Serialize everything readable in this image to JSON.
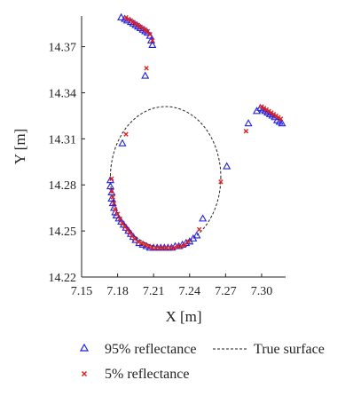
{
  "chart_data": {
    "type": "scatter",
    "xlabel": "X [m]",
    "ylabel": "Y [m]",
    "xlim": [
      7.15,
      7.32
    ],
    "ylim": [
      14.22,
      14.39
    ],
    "xticks": [
      "7.15",
      "7.18",
      "7.21",
      "7.24",
      "7.27",
      "7.30"
    ],
    "yticks": [
      "14.22",
      "14.25",
      "14.28",
      "14.31",
      "14.34",
      "14.37"
    ],
    "grid": false,
    "legend_position": "bottom",
    "colors": {
      "blue": "#2020e0",
      "red": "#e02020",
      "line": "#222222"
    },
    "series": [
      {
        "name": "95% reflectance",
        "marker": "triangle",
        "points": [
          [
            7.183,
            14.389
          ],
          [
            7.186,
            14.388
          ],
          [
            7.188,
            14.387
          ],
          [
            7.191,
            14.386
          ],
          [
            7.193,
            14.385
          ],
          [
            7.195,
            14.384
          ],
          [
            7.197,
            14.383
          ],
          [
            7.199,
            14.382
          ],
          [
            7.201,
            14.381
          ],
          [
            7.203,
            14.38
          ],
          [
            7.205,
            14.379
          ],
          [
            7.207,
            14.377
          ],
          [
            7.208,
            14.374
          ],
          [
            7.209,
            14.371
          ],
          [
            7.203,
            14.351
          ],
          [
            7.184,
            14.307
          ],
          [
            7.174,
            14.283
          ],
          [
            7.174,
            14.279
          ],
          [
            7.175,
            14.275
          ],
          [
            7.175,
            14.271
          ],
          [
            7.176,
            14.268
          ],
          [
            7.177,
            14.265
          ],
          [
            7.178,
            14.262
          ],
          [
            7.179,
            14.26
          ],
          [
            7.181,
            14.258
          ],
          [
            7.183,
            14.256
          ],
          [
            7.185,
            14.254
          ],
          [
            7.187,
            14.252
          ],
          [
            7.189,
            14.25
          ],
          [
            7.191,
            14.248
          ],
          [
            7.193,
            14.246
          ],
          [
            7.195,
            14.244
          ],
          [
            7.198,
            14.242
          ],
          [
            7.201,
            14.241
          ],
          [
            7.204,
            14.24
          ],
          [
            7.207,
            14.239
          ],
          [
            7.21,
            14.239
          ],
          [
            7.213,
            14.239
          ],
          [
            7.216,
            14.239
          ],
          [
            7.219,
            14.239
          ],
          [
            7.222,
            14.239
          ],
          [
            7.225,
            14.239
          ],
          [
            7.228,
            14.24
          ],
          [
            7.231,
            14.24
          ],
          [
            7.234,
            14.241
          ],
          [
            7.237,
            14.242
          ],
          [
            7.24,
            14.243
          ],
          [
            7.243,
            14.245
          ],
          [
            7.246,
            14.247
          ],
          [
            7.251,
            14.258
          ],
          [
            7.271,
            14.292
          ],
          [
            7.289,
            14.32
          ],
          [
            7.296,
            14.328
          ],
          [
            7.299,
            14.33
          ],
          [
            7.301,
            14.329
          ],
          [
            7.303,
            14.328
          ],
          [
            7.305,
            14.327
          ],
          [
            7.307,
            14.326
          ],
          [
            7.309,
            14.325
          ],
          [
            7.311,
            14.324
          ],
          [
            7.313,
            14.322
          ],
          [
            7.315,
            14.321
          ],
          [
            7.317,
            14.32
          ]
        ]
      },
      {
        "name": "5% reflectance",
        "marker": "cross",
        "points": [
          [
            7.187,
            14.389
          ],
          [
            7.189,
            14.388
          ],
          [
            7.191,
            14.387
          ],
          [
            7.193,
            14.386
          ],
          [
            7.195,
            14.385
          ],
          [
            7.197,
            14.384
          ],
          [
            7.199,
            14.383
          ],
          [
            7.201,
            14.382
          ],
          [
            7.203,
            14.381
          ],
          [
            7.205,
            14.38
          ],
          [
            7.207,
            14.378
          ],
          [
            7.209,
            14.374
          ],
          [
            7.204,
            14.356
          ],
          [
            7.187,
            14.313
          ],
          [
            7.175,
            14.284
          ],
          [
            7.175,
            14.276
          ],
          [
            7.176,
            14.272
          ],
          [
            7.177,
            14.268
          ],
          [
            7.178,
            14.264
          ],
          [
            7.18,
            14.261
          ],
          [
            7.182,
            14.258
          ],
          [
            7.184,
            14.255
          ],
          [
            7.186,
            14.253
          ],
          [
            7.188,
            14.251
          ],
          [
            7.19,
            14.249
          ],
          [
            7.192,
            14.247
          ],
          [
            7.194,
            14.245
          ],
          [
            7.197,
            14.243
          ],
          [
            7.2,
            14.242
          ],
          [
            7.203,
            14.241
          ],
          [
            7.206,
            14.24
          ],
          [
            7.209,
            14.239
          ],
          [
            7.212,
            14.239
          ],
          [
            7.215,
            14.239
          ],
          [
            7.218,
            14.239
          ],
          [
            7.221,
            14.239
          ],
          [
            7.224,
            14.239
          ],
          [
            7.227,
            14.239
          ],
          [
            7.23,
            14.24
          ],
          [
            7.233,
            14.24
          ],
          [
            7.236,
            14.241
          ],
          [
            7.239,
            14.243
          ],
          [
            7.248,
            14.251
          ],
          [
            7.266,
            14.282
          ],
          [
            7.287,
            14.315
          ],
          [
            7.3,
            14.331
          ],
          [
            7.302,
            14.33
          ],
          [
            7.304,
            14.329
          ],
          [
            7.306,
            14.328
          ],
          [
            7.308,
            14.327
          ],
          [
            7.31,
            14.326
          ],
          [
            7.312,
            14.325
          ],
          [
            7.314,
            14.324
          ],
          [
            7.316,
            14.323
          ]
        ]
      },
      {
        "name": "True surface",
        "type": "circle",
        "center": [
          7.22,
          14.285
        ],
        "radius": 0.046
      }
    ]
  }
}
